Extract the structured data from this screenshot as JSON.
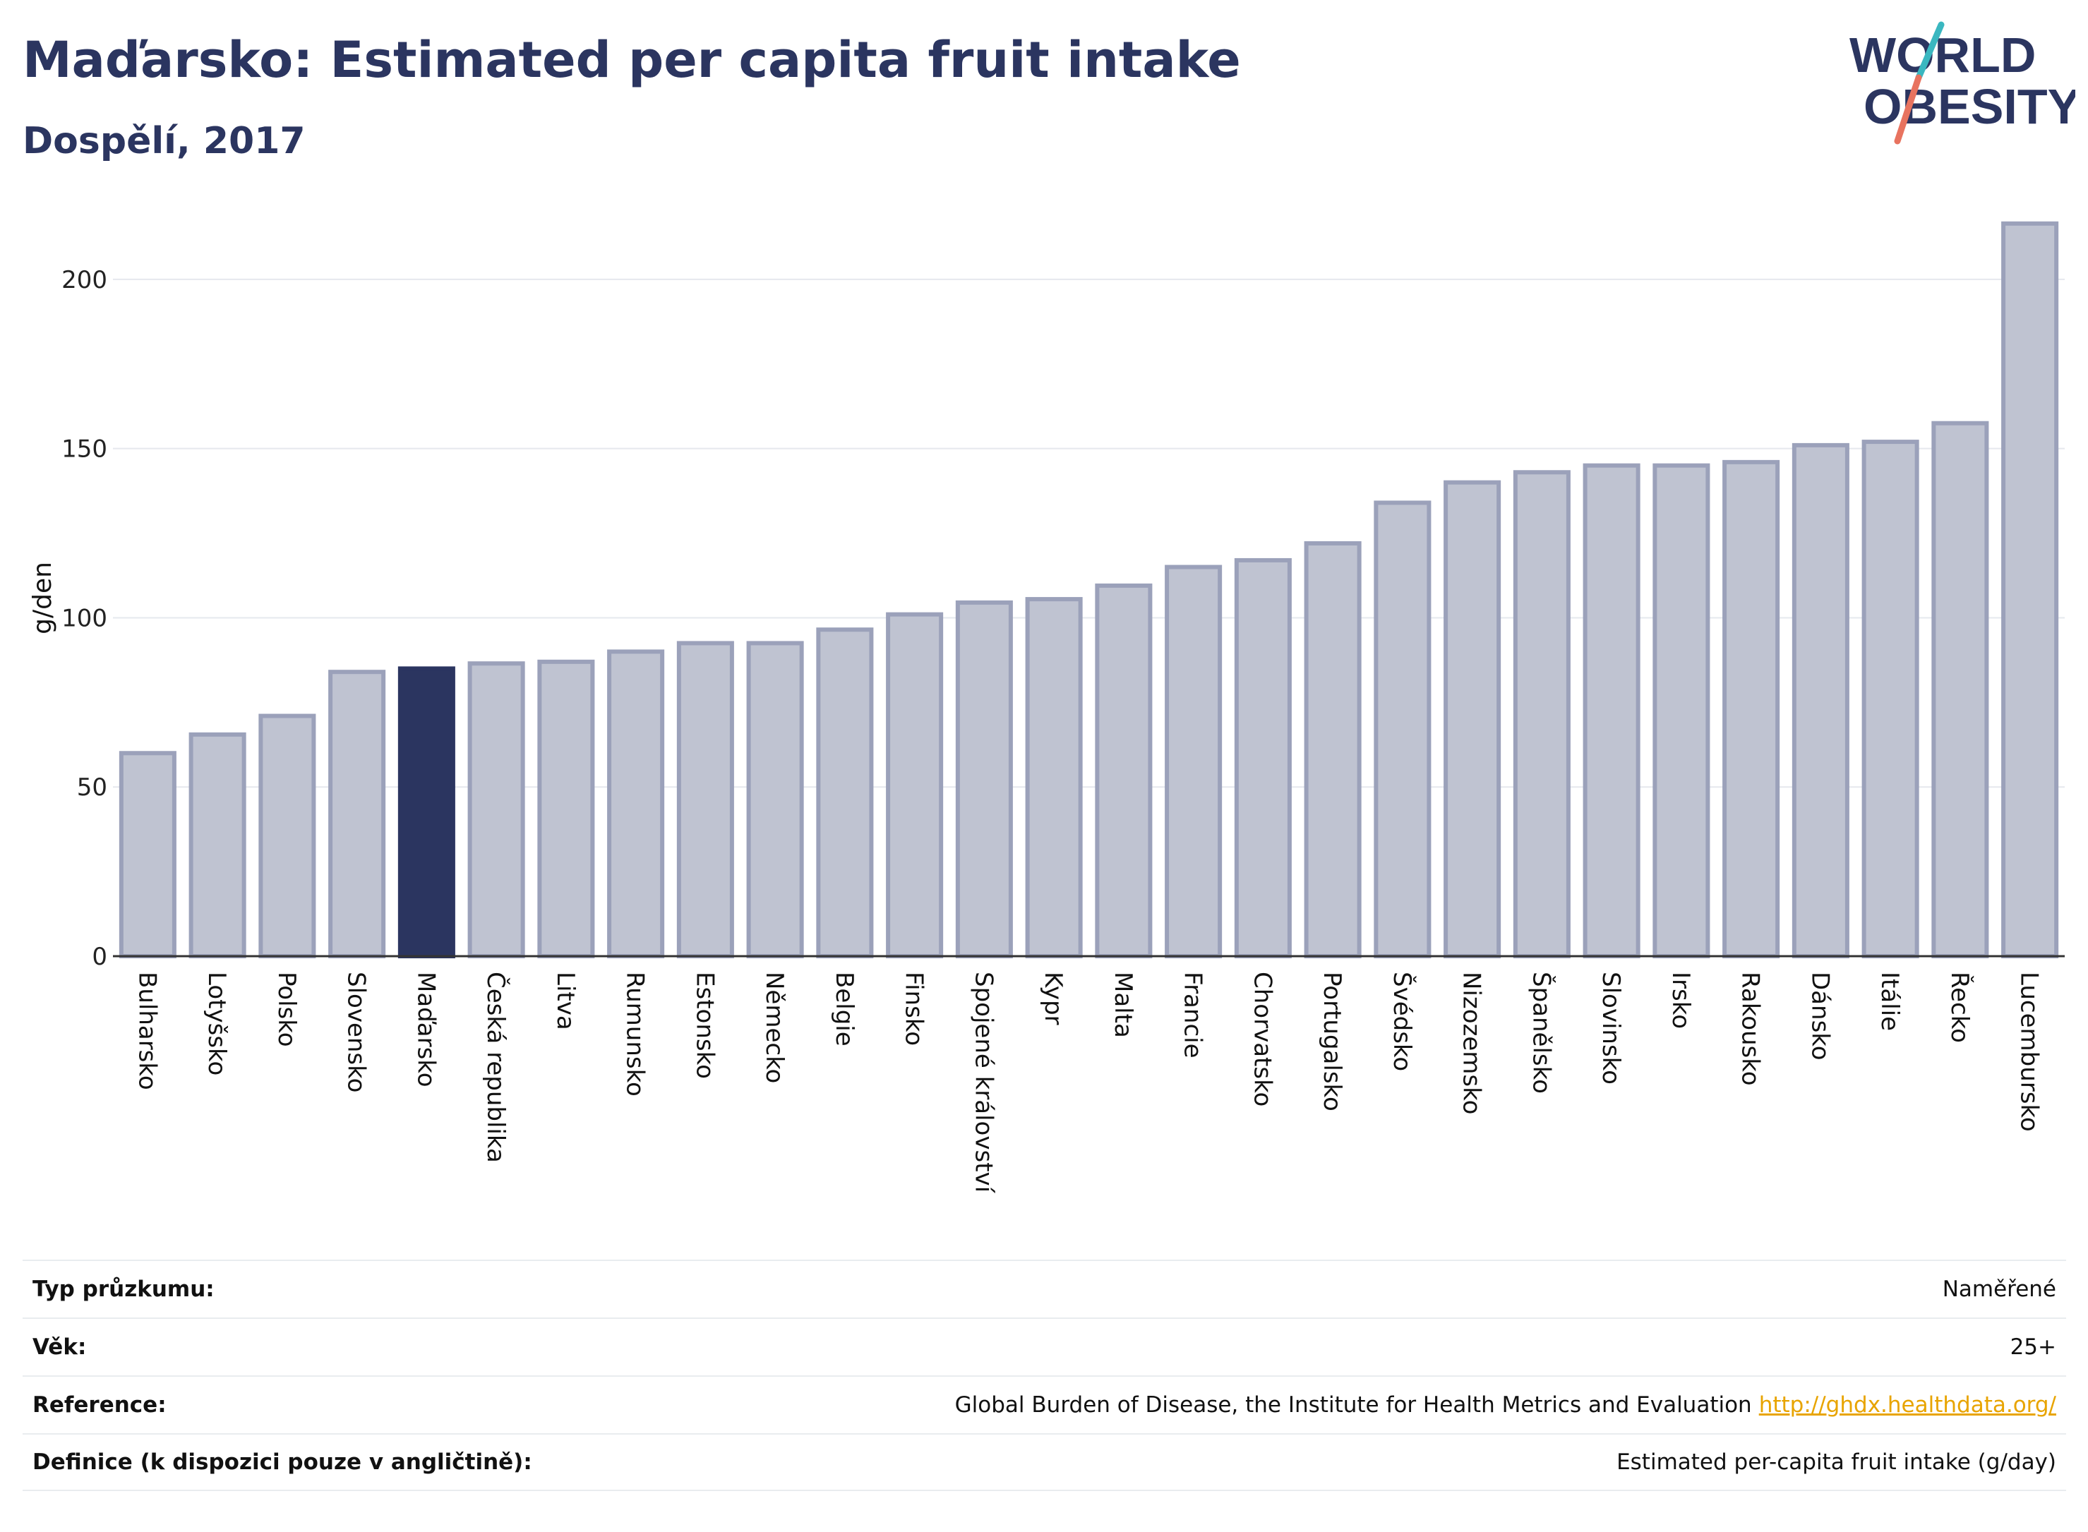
{
  "header": {
    "title": "Maďarsko: Estimated per capita fruit intake",
    "subtitle": "Dospělí, 2017"
  },
  "logo": {
    "line1": "WORLD",
    "line2": "OBESITY",
    "accent_teal": "#3ab7c0",
    "accent_coral": "#e8735f",
    "text_color": "#2b3560"
  },
  "chart_data": {
    "type": "bar",
    "title": "",
    "xlabel": "",
    "ylabel": "g/den",
    "ylim": [
      0,
      220
    ],
    "yticks": [
      0,
      50,
      100,
      150,
      200
    ],
    "grid": true,
    "highlight": "Maďarsko",
    "colors": {
      "bar": "#bfc3d1",
      "bar_border": "#9ba1ba",
      "highlight": "#2b3560"
    },
    "categories": [
      "Bulharsko",
      "Lotyšsko",
      "Polsko",
      "Slovensko",
      "Maďarsko",
      "Česká republika",
      "Litva",
      "Rumunsko",
      "Estonsko",
      "Německo",
      "Belgie",
      "Finsko",
      "Spojené království",
      "Kypr",
      "Malta",
      "Francie",
      "Chorvatsko",
      "Portugalsko",
      "Švédsko",
      "Nizozemsko",
      "Španělsko",
      "Slovinsko",
      "Irsko",
      "Rakousko",
      "Dánsko",
      "Itálie",
      "Řecko",
      "Lucembursko"
    ],
    "values": [
      60,
      65.5,
      71,
      84,
      85,
      86.5,
      87,
      90,
      92.5,
      92.5,
      96.5,
      101,
      104.5,
      105.5,
      109.5,
      115,
      117,
      122,
      134,
      140,
      143,
      145,
      145,
      146,
      151,
      152,
      157.5,
      216.5
    ]
  },
  "info": [
    {
      "label": "Typ průzkumu:",
      "value": "Naměřené"
    },
    {
      "label": "Věk:",
      "value": "25+"
    },
    {
      "label": "Reference:",
      "value": "Global Burden of Disease, the Institute for Health Metrics and Evaluation",
      "link": "http://ghdx.healthdata.org/"
    },
    {
      "label": "Definice (k dispozici pouze v angličtině):",
      "value": "Estimated per-capita fruit intake (g/day)"
    }
  ]
}
